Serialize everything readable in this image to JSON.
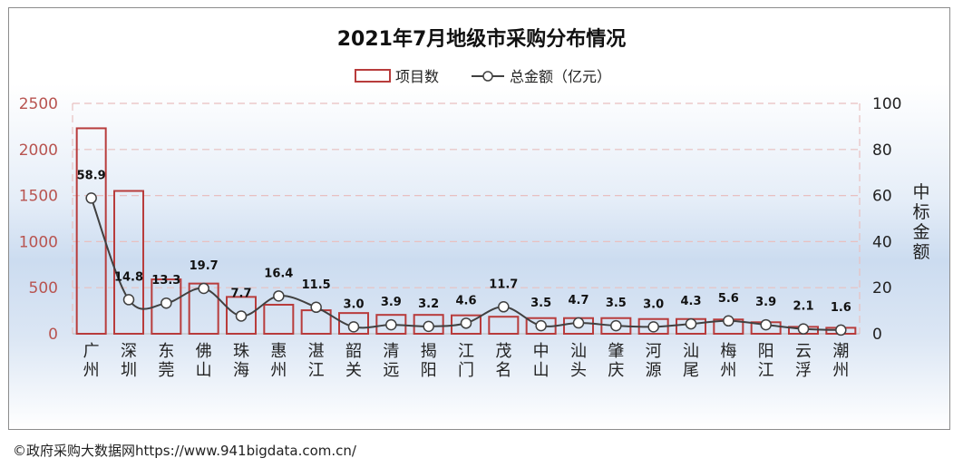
{
  "chart_data": {
    "type": "bar",
    "title": "2021年7月地级市采购分布情况",
    "categories": [
      "广州",
      "深圳",
      "东莞",
      "佛山",
      "珠海",
      "惠州",
      "湛江",
      "韶关",
      "清远",
      "揭阳",
      "江门",
      "茂名",
      "中山",
      "汕头",
      "肇庆",
      "河源",
      "汕尾",
      "梅州",
      "阳江",
      "云浮",
      "潮州"
    ],
    "series": [
      {
        "name": "项目数",
        "type": "bar",
        "axis": "left",
        "values": [
          2230,
          1550,
          590,
          545,
          400,
          315,
          255,
          225,
          205,
          205,
          200,
          185,
          170,
          170,
          170,
          160,
          160,
          155,
          125,
          75,
          65
        ]
      },
      {
        "name": "总金额（亿元）",
        "type": "line",
        "axis": "right",
        "values": [
          58.9,
          14.8,
          13.3,
          19.7,
          7.7,
          16.4,
          11.5,
          3.0,
          3.9,
          3.2,
          4.6,
          11.7,
          3.5,
          4.7,
          3.5,
          3.0,
          4.3,
          5.6,
          3.9,
          2.1,
          1.6
        ],
        "labels": [
          "58.9",
          "14.8",
          "13.3",
          "19.7",
          "7.7",
          "16.4",
          "11.5",
          "3.0",
          "3.9",
          "3.2",
          "4.6",
          "11.7",
          "3.5",
          "4.7",
          "3.5",
          "3.0",
          "4.3",
          "5.6",
          "3.9",
          "2.1",
          "1.6"
        ]
      }
    ],
    "left_axis": {
      "ylim": [
        0,
        2500
      ],
      "ticks": [
        "0",
        "500",
        "1000",
        "1500",
        "2000",
        "2500"
      ]
    },
    "right_axis": {
      "ylim": [
        0,
        100
      ],
      "ticks": [
        "0",
        "20",
        "40",
        "60",
        "80",
        "100"
      ],
      "label": "中标金额"
    },
    "legend_position": "top-center",
    "grid": true,
    "colors": {
      "bar_stroke": "#b83c3c",
      "line": "#404040",
      "left_tick": "#b85450",
      "grid": "#e8c0c0",
      "text": "#222222"
    }
  },
  "footer": {
    "copyright": "©政府采购大数据网https://www.941bigdata.com.cn/"
  }
}
